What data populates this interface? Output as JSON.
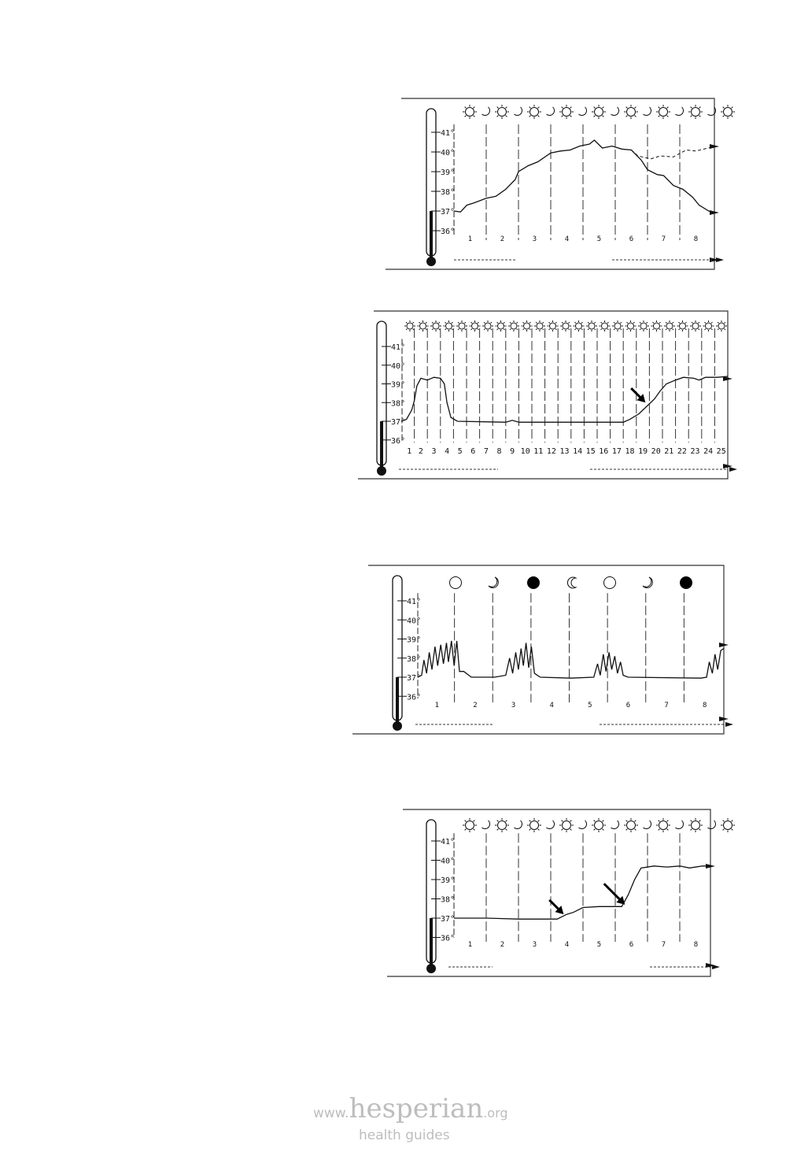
{
  "chart_data": [
    {
      "type": "line",
      "y_ticks": [
        "41°",
        "40°",
        "39°",
        "38°",
        "37°",
        "36°"
      ],
      "ylim": [
        36,
        41
      ],
      "xlim": [
        0,
        8
      ],
      "x_labels": [
        "1",
        "2",
        "3",
        "4",
        "5",
        "6",
        "7",
        "8"
      ],
      "symbols": [
        "sun",
        "moon",
        "sun",
        "moon",
        "sun",
        "moon",
        "sun",
        "moon",
        "sun",
        "moon",
        "sun",
        "moon",
        "sun",
        "moon",
        "sun",
        "moon",
        "sun"
      ],
      "series": [
        {
          "style": "solid",
          "points": [
            [
              0,
              37
            ],
            [
              0.2,
              36.95
            ],
            [
              0.4,
              37.3
            ],
            [
              0.6,
              37.4
            ],
            [
              1,
              37.65
            ],
            [
              1.3,
              37.75
            ],
            [
              1.6,
              38.1
            ],
            [
              1.9,
              38.6
            ],
            [
              2,
              39.0
            ],
            [
              2.3,
              39.3
            ],
            [
              2.6,
              39.5
            ],
            [
              3,
              39.95
            ],
            [
              3.3,
              40.05
            ],
            [
              3.6,
              40.1
            ],
            [
              3.9,
              40.3
            ],
            [
              4.2,
              40.4
            ],
            [
              4.35,
              40.6
            ],
            [
              4.6,
              40.2
            ],
            [
              4.9,
              40.3
            ],
            [
              5.2,
              40.15
            ],
            [
              5.5,
              40.1
            ],
            [
              5.8,
              39.6
            ],
            [
              6,
              39.1
            ],
            [
              6.3,
              38.85
            ],
            [
              6.5,
              38.8
            ],
            [
              6.8,
              38.3
            ],
            [
              7.1,
              38.1
            ],
            [
              7.4,
              37.7
            ],
            [
              7.6,
              37.3
            ],
            [
              7.9,
              37.0
            ],
            [
              8.3,
              36.95
            ]
          ]
        },
        {
          "style": "dashed",
          "points": [
            [
              5.5,
              40.1
            ],
            [
              5.7,
              39.8
            ],
            [
              6.1,
              39.65
            ],
            [
              6.4,
              39.8
            ],
            [
              6.8,
              39.75
            ],
            [
              7.2,
              40.1
            ],
            [
              7.5,
              40.05
            ],
            [
              8,
              40.25
            ],
            [
              8.3,
              40.3
            ]
          ]
        }
      ],
      "annotations": []
    },
    {
      "type": "line",
      "y_ticks": [
        "41°",
        "40°",
        "39°",
        "38°",
        "37°",
        "36°"
      ],
      "ylim": [
        36,
        41
      ],
      "xlim": [
        0,
        25
      ],
      "x_labels": [
        "1",
        "2",
        "3",
        "4",
        "5",
        "6",
        "7",
        "8",
        "9",
        "10",
        "11",
        "12",
        "13",
        "14",
        "15",
        "16",
        "17",
        "18",
        "19",
        "20",
        "21",
        "22",
        "23",
        "24",
        "25"
      ],
      "symbols": [
        "sun",
        "sun",
        "sun",
        "sun",
        "sun",
        "sun",
        "sun",
        "sun",
        "sun",
        "sun",
        "sun",
        "sun",
        "sun",
        "sun",
        "sun",
        "sun",
        "sun",
        "sun",
        "sun",
        "sun",
        "sun",
        "sun",
        "sun",
        "sun",
        "sun"
      ],
      "series": [
        {
          "style": "solid",
          "points": [
            [
              0,
              37
            ],
            [
              0.4,
              37.1
            ],
            [
              0.8,
              37.6
            ],
            [
              1,
              38.1
            ],
            [
              1.2,
              38.9
            ],
            [
              1.5,
              39.3
            ],
            [
              2,
              39.2
            ],
            [
              2.5,
              39.35
            ],
            [
              3,
              39.3
            ],
            [
              3.3,
              39.0
            ],
            [
              3.5,
              38.0
            ],
            [
              3.8,
              37.2
            ],
            [
              4.3,
              37.0
            ],
            [
              8,
              36.95
            ],
            [
              8.5,
              37.05
            ],
            [
              9,
              36.95
            ],
            [
              17,
              36.95
            ],
            [
              17.5,
              37.1
            ],
            [
              18.2,
              37.4
            ],
            [
              18.8,
              37.8
            ],
            [
              19.4,
              38.2
            ],
            [
              19.8,
              38.6
            ],
            [
              20.3,
              39.0
            ],
            [
              21,
              39.2
            ],
            [
              21.6,
              39.35
            ],
            [
              22.4,
              39.3
            ],
            [
              22.8,
              39.2
            ],
            [
              23.3,
              39.35
            ],
            [
              24.2,
              39.35
            ],
            [
              25.3,
              39.4
            ]
          ]
        }
      ],
      "annotations": [
        {
          "type": "arrow",
          "day": 18.7,
          "temp": 38.0
        }
      ]
    },
    {
      "type": "line",
      "y_ticks": [
        "41°",
        "40°",
        "39°",
        "38°",
        "37°",
        "36°"
      ],
      "ylim": [
        36,
        41
      ],
      "xlim": [
        0,
        8
      ],
      "x_labels": [
        "1",
        "2",
        "3",
        "4",
        "5",
        "6",
        "7",
        "8"
      ],
      "symbols": [
        "full-moon",
        "waxing-crescent",
        "new-moon",
        "waning-crescent",
        "full-moon",
        "waxing-crescent",
        "new-moon"
      ],
      "series": [
        {
          "style": "solid",
          "points": [
            [
              0,
              37
            ],
            [
              0.1,
              37.1
            ],
            [
              0.16,
              37.9
            ],
            [
              0.23,
              37.2
            ],
            [
              0.3,
              38.3
            ],
            [
              0.37,
              37.4
            ],
            [
              0.45,
              38.6
            ],
            [
              0.52,
              37.6
            ],
            [
              0.6,
              38.7
            ],
            [
              0.67,
              37.7
            ],
            [
              0.75,
              38.8
            ],
            [
              0.8,
              37.8
            ],
            [
              0.88,
              38.9
            ],
            [
              0.95,
              37.6
            ],
            [
              1.02,
              38.9
            ],
            [
              1.09,
              37.3
            ],
            [
              1.2,
              37.3
            ],
            [
              1.4,
              37.0
            ],
            [
              2.0,
              37.0
            ],
            [
              2.3,
              37.1
            ],
            [
              2.4,
              38.0
            ],
            [
              2.48,
              37.2
            ],
            [
              2.56,
              38.3
            ],
            [
              2.63,
              37.4
            ],
            [
              2.7,
              38.5
            ],
            [
              2.76,
              37.6
            ],
            [
              2.83,
              38.8
            ],
            [
              2.9,
              37.5
            ],
            [
              2.97,
              38.6
            ],
            [
              3.05,
              37.2
            ],
            [
              3.2,
              37.0
            ],
            [
              4.0,
              36.95
            ],
            [
              4.6,
              37.0
            ],
            [
              4.7,
              37.7
            ],
            [
              4.77,
              37.1
            ],
            [
              4.85,
              38.2
            ],
            [
              4.92,
              37.3
            ],
            [
              5.0,
              38.3
            ],
            [
              5.07,
              37.4
            ],
            [
              5.15,
              38.1
            ],
            [
              5.22,
              37.2
            ],
            [
              5.3,
              37.8
            ],
            [
              5.37,
              37.1
            ],
            [
              5.5,
              37.0
            ],
            [
              7.4,
              36.95
            ],
            [
              7.55,
              37.0
            ],
            [
              7.62,
              37.8
            ],
            [
              7.7,
              37.2
            ],
            [
              7.77,
              38.2
            ],
            [
              7.84,
              37.4
            ],
            [
              7.92,
              38.4
            ],
            [
              8,
              38.5
            ]
          ]
        }
      ],
      "annotations": []
    },
    {
      "type": "line",
      "y_ticks": [
        "41°",
        "40°",
        "39°",
        "38°",
        "37°",
        "36°"
      ],
      "ylim": [
        36,
        41
      ],
      "xlim": [
        0,
        8
      ],
      "x_labels": [
        "1",
        "2",
        "3",
        "4",
        "5",
        "6",
        "7",
        "8"
      ],
      "symbols": [
        "sun",
        "moon",
        "sun",
        "moon",
        "sun",
        "moon",
        "sun",
        "moon",
        "sun",
        "moon",
        "sun",
        "moon",
        "sun",
        "moon",
        "sun",
        "moon",
        "sun"
      ],
      "series": [
        {
          "style": "solid",
          "points": [
            [
              0,
              37
            ],
            [
              1,
              37
            ],
            [
              2,
              36.95
            ],
            [
              3.2,
              36.95
            ],
            [
              3.5,
              37.2
            ],
            [
              3.7,
              37.3
            ],
            [
              4,
              37.55
            ],
            [
              4.5,
              37.6
            ],
            [
              5.2,
              37.6
            ],
            [
              5.4,
              38.2
            ],
            [
              5.6,
              39.0
            ],
            [
              5.8,
              39.6
            ],
            [
              6.2,
              39.7
            ],
            [
              6.6,
              39.65
            ],
            [
              7,
              39.7
            ],
            [
              7.3,
              39.6
            ],
            [
              7.7,
              39.7
            ],
            [
              8.3,
              39.7
            ]
          ]
        }
      ],
      "annotations": [
        {
          "type": "arrow",
          "day": 3.4,
          "temp": 37.2
        },
        {
          "type": "arrow",
          "day": 5.3,
          "temp": 37.7
        }
      ]
    }
  ],
  "footer": {
    "www": "www.",
    "brand": "hesperian",
    "tld": ".org",
    "tagline": "health guides"
  }
}
